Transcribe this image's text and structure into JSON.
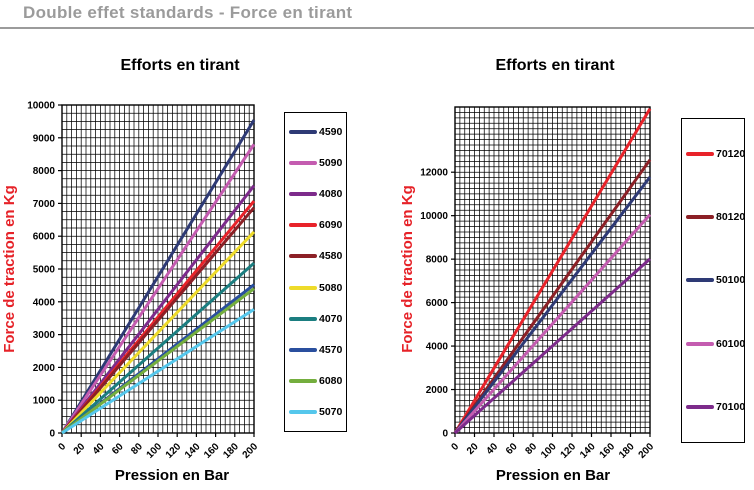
{
  "page": {
    "title": "Double effet standards - Force en tirant"
  },
  "colors": {
    "page_title_gray": "#9b9b9b",
    "axis_title_red": "#e62228",
    "grid_black": "#000000"
  },
  "chart_data": [
    {
      "type": "line",
      "title": "Efforts en tirant",
      "xlabel": "Pression en Bar",
      "ylabel": "Force de traction en Kg",
      "x": [
        0,
        200
      ],
      "xlim": [
        0,
        200
      ],
      "ylim": [
        0,
        10000
      ],
      "x_tick_step": 20,
      "y_tick_step": 1000,
      "x_minor_step": 5,
      "y_minor_step": 250,
      "grid": true,
      "legend_position": "right",
      "series": [
        {
          "name": "4590",
          "color": "#2e3a75",
          "values": [
            0,
            9540
          ]
        },
        {
          "name": "5090",
          "color": "#c45cb0",
          "values": [
            0,
            8800
          ]
        },
        {
          "name": "4080",
          "color": "#7d2b8b",
          "values": [
            0,
            7540
          ]
        },
        {
          "name": "6090",
          "color": "#e8232a",
          "values": [
            0,
            7070
          ]
        },
        {
          "name": "4580",
          "color": "#8c2026",
          "values": [
            0,
            6870
          ]
        },
        {
          "name": "5080",
          "color": "#eedb2a",
          "values": [
            0,
            6130
          ]
        },
        {
          "name": "4070",
          "color": "#1b7e80",
          "values": [
            0,
            5180
          ]
        },
        {
          "name": "4570",
          "color": "#2a4f9e",
          "values": [
            0,
            4520
          ]
        },
        {
          "name": "6080",
          "color": "#74ae3e",
          "values": [
            0,
            4400
          ]
        },
        {
          "name": "5070",
          "color": "#55c7ec",
          "values": [
            0,
            3770
          ]
        }
      ]
    },
    {
      "type": "line",
      "title": "Efforts en tirant",
      "xlabel": "Pression en Bar",
      "ylabel": "Force de traction en Kg",
      "x": [
        0,
        200
      ],
      "xlim": [
        0,
        200
      ],
      "ylim": [
        0,
        15000
      ],
      "x_tick_step": 20,
      "y_tick_step": 2000,
      "x_minor_step": 5,
      "y_minor_step": 250,
      "grid": true,
      "legend_position": "right",
      "series": [
        {
          "name": "70120",
          "color": "#e8232a",
          "values": [
            0,
            14920
          ]
        },
        {
          "name": "80120",
          "color": "#8c2026",
          "values": [
            0,
            12570
          ]
        },
        {
          "name": "50100",
          "color": "#2e3a75",
          "values": [
            0,
            11780
          ]
        },
        {
          "name": "60100",
          "color": "#c45cb0",
          "values": [
            0,
            10050
          ]
        },
        {
          "name": "70100",
          "color": "#7d2b8b",
          "values": [
            0,
            8010
          ]
        }
      ]
    }
  ]
}
